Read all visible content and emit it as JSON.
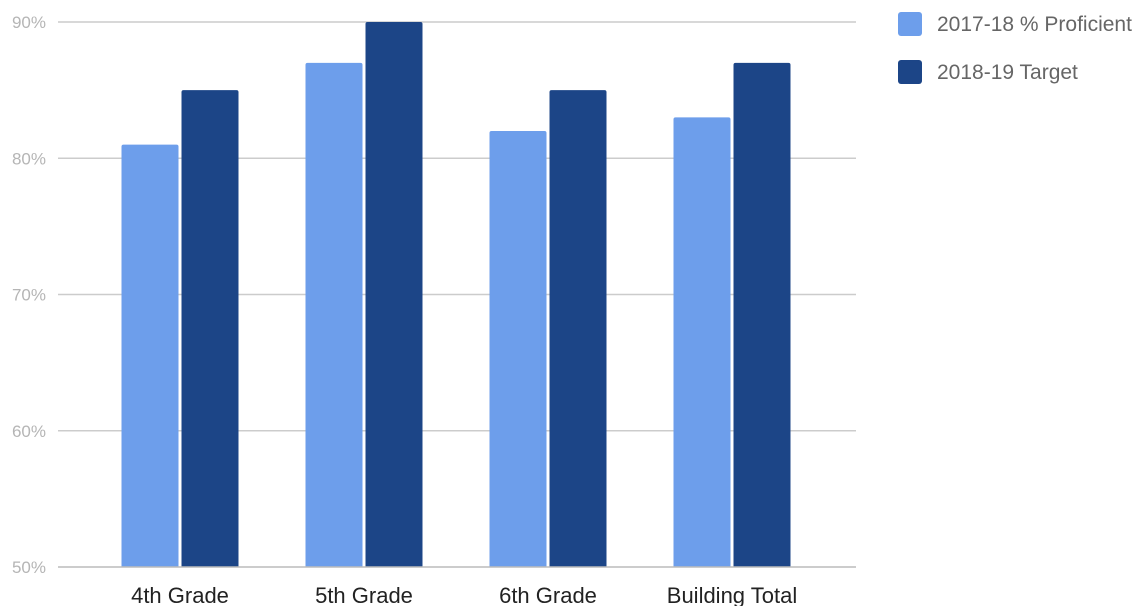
{
  "chart_data": {
    "type": "bar",
    "title": "",
    "xlabel": "",
    "ylabel": "",
    "categories": [
      "4th Grade",
      "5th Grade",
      "6th Grade",
      "Building Total"
    ],
    "series": [
      {
        "name": "2017-18 % Proficient",
        "color": "#6d9eeb",
        "values": [
          81,
          87,
          82,
          83
        ]
      },
      {
        "name": "2018-19 Target",
        "color": "#1c4587",
        "values": [
          85,
          90,
          85,
          87
        ]
      }
    ],
    "ylim": [
      50,
      90
    ],
    "yticks": [
      50,
      60,
      70,
      80,
      90
    ],
    "ytick_labels": [
      "50%",
      "60%",
      "70%",
      "80%",
      "90%"
    ],
    "grid": true,
    "legend_position": "right"
  }
}
